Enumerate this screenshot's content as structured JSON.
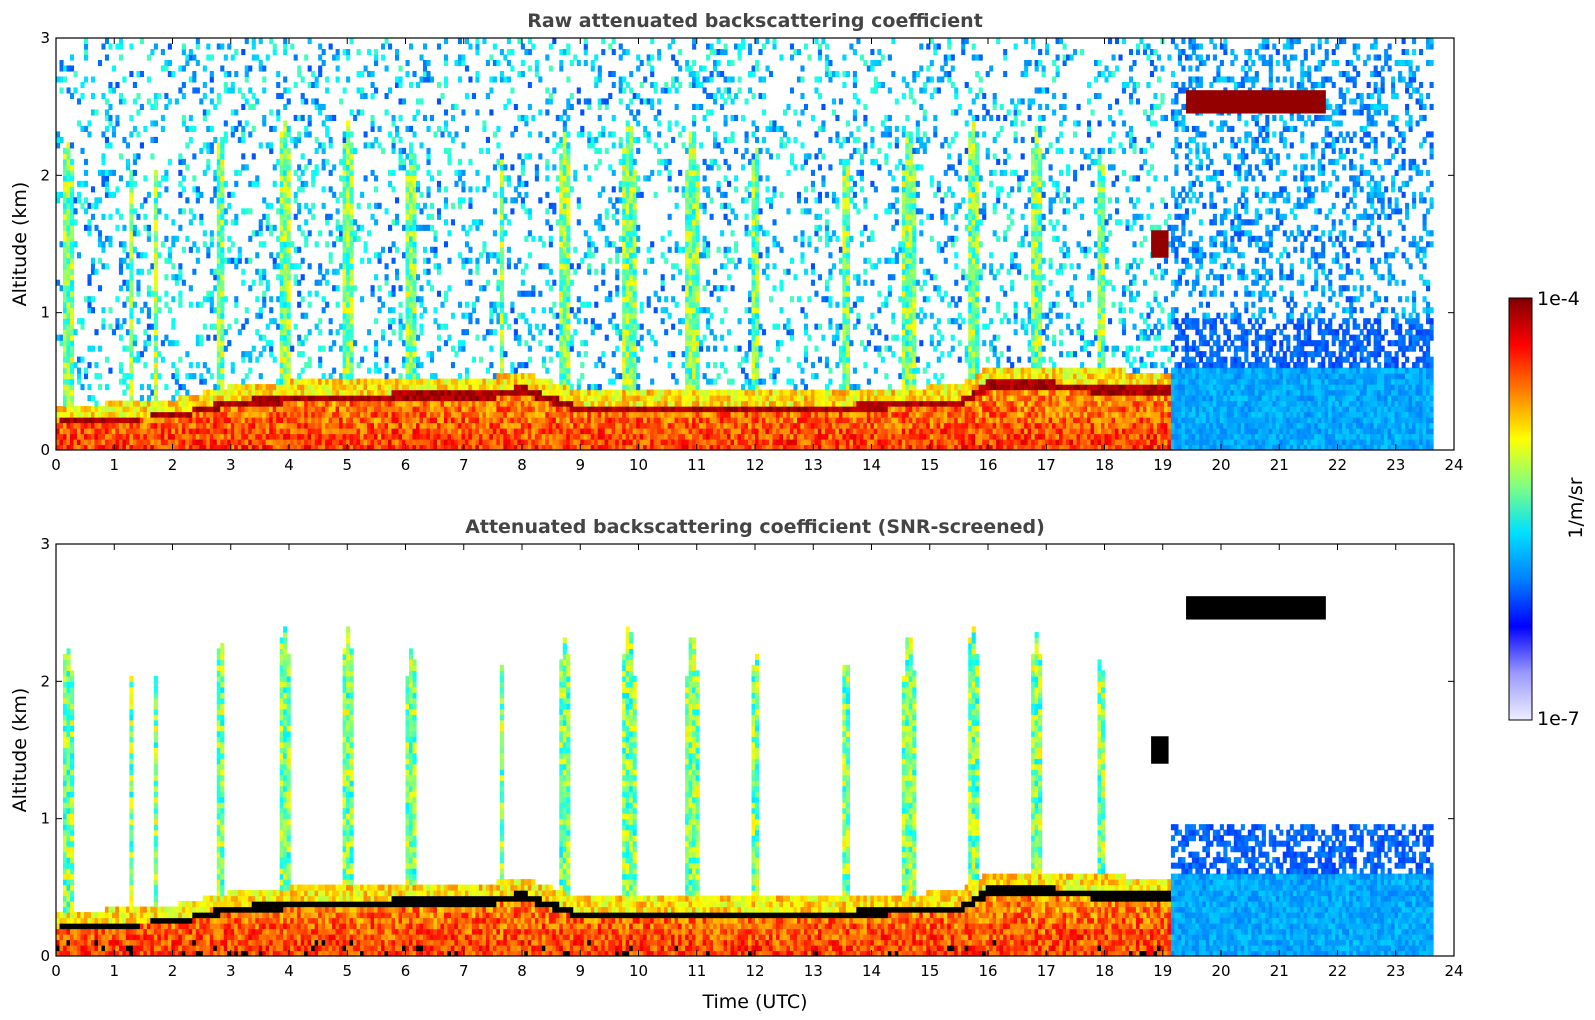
{
  "chart_data": [
    {
      "type": "heatmap",
      "title": "Raw attenuated backscattering coefficient",
      "xlabel": "",
      "ylabel": "Altitude (km)",
      "xlim": [
        0,
        24
      ],
      "ylim": [
        0,
        3
      ],
      "xticks": [
        "0",
        "1",
        "2",
        "3",
        "4",
        "5",
        "6",
        "7",
        "8",
        "9",
        "10",
        "11",
        "12",
        "13",
        "14",
        "15",
        "16",
        "17",
        "18",
        "19",
        "20",
        "21",
        "22",
        "23",
        "24"
      ],
      "yticks": [
        "0",
        "1",
        "2",
        "3"
      ],
      "data_extent_x": [
        0,
        23.6
      ],
      "features": {
        "boundary_layer_top_km": [
          [
            0,
            0.2
          ],
          [
            2,
            0.25
          ],
          [
            3,
            0.35
          ],
          [
            4,
            0.38
          ],
          [
            7.5,
            0.42
          ],
          [
            8,
            0.45
          ],
          [
            9,
            0.3
          ],
          [
            11,
            0.32
          ],
          [
            12.5,
            0.3
          ],
          [
            15.5,
            0.35
          ],
          [
            16,
            0.5
          ],
          [
            18.9,
            0.45
          ]
        ],
        "cloud_layers": [
          {
            "start_utc": 18.8,
            "end_utc": 19.1,
            "base_km": 1.4,
            "top_km": 1.6
          },
          {
            "start_utc": 19.4,
            "end_utc": 21.8,
            "base_km": 2.45,
            "top_km": 2.62
          }
        ]
      }
    },
    {
      "type": "heatmap",
      "title": "Attenuated backscattering coefficient (SNR-screened)",
      "xlabel": "Time (UTC)",
      "ylabel": "Altitude (km)",
      "xlim": [
        0,
        24
      ],
      "ylim": [
        0,
        3
      ],
      "xticks": [
        "0",
        "1",
        "2",
        "3",
        "4",
        "5",
        "6",
        "7",
        "8",
        "9",
        "10",
        "11",
        "12",
        "13",
        "14",
        "15",
        "16",
        "17",
        "18",
        "19",
        "20",
        "21",
        "22",
        "23",
        "24"
      ],
      "yticks": [
        "0",
        "1",
        "2",
        "3"
      ],
      "data_extent_x": [
        0,
        23.6
      ],
      "features": {
        "saturated_color": "#000000",
        "cloud_layers": [
          {
            "start_utc": 18.8,
            "end_utc": 19.1,
            "base_km": 1.4,
            "top_km": 1.6
          },
          {
            "start_utc": 19.4,
            "end_utc": 21.8,
            "base_km": 2.45,
            "top_km": 2.62
          }
        ]
      }
    }
  ],
  "colorbar": {
    "label": "1/m/sr",
    "max_label": "1e-4",
    "min_label": "1e-7",
    "colormap": "jet",
    "colors": [
      "#eeeeff",
      "#9999ff",
      "#0000ff",
      "#0080ff",
      "#00e0ff",
      "#80ff80",
      "#ffff00",
      "#ff8000",
      "#ff0000",
      "#800000"
    ]
  }
}
